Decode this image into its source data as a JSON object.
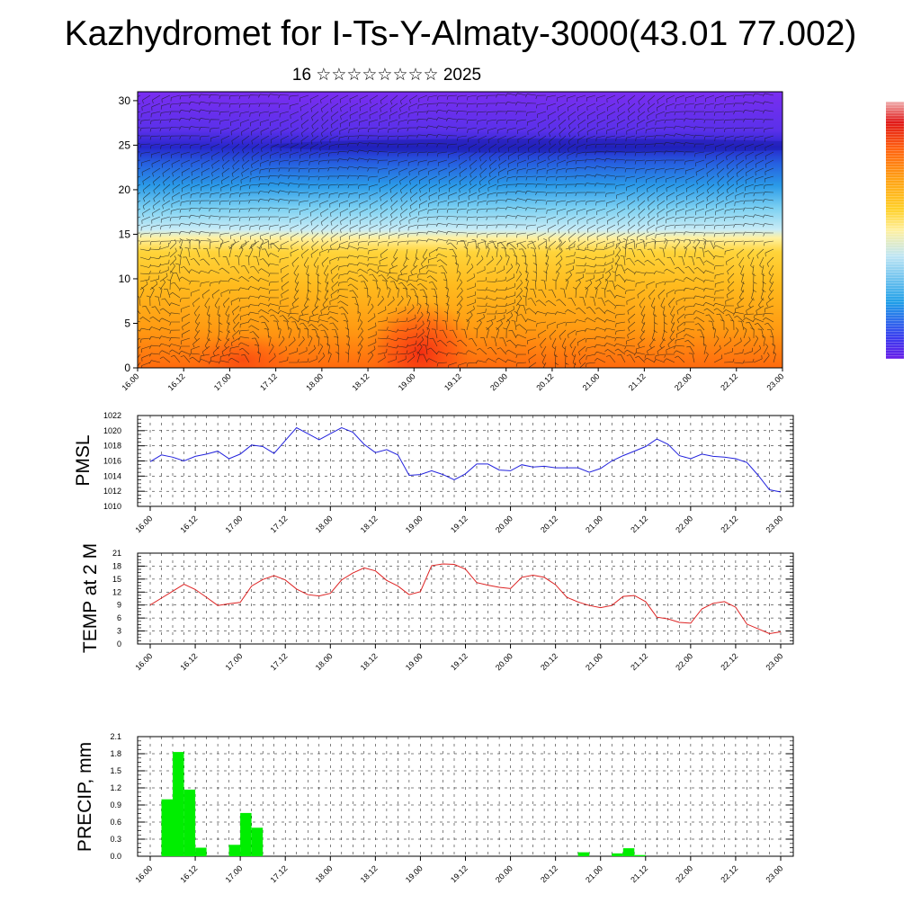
{
  "header": {
    "title": "Kazhydromet for I-Ts-Y-Almaty-3000(43.01 77.002)",
    "date": "16 ☆☆☆☆☆☆☆☆ 2025"
  },
  "colors": {
    "pmsl_line": "#2222dd",
    "temp_line": "#dd2222",
    "precip_bar": "#00ee00",
    "colorbar_stops": [
      "#6a1ee8",
      "#3a3aee",
      "#1f9fe8",
      "#bfe6f4",
      "#fff0a0",
      "#ffd12a",
      "#ffa114",
      "#ff6010",
      "#e01818",
      "#f0b0b0"
    ]
  },
  "chart_data": [
    {
      "type": "heatmap",
      "title": "",
      "x_tick_labels": [
        "16.00",
        "16.12",
        "17.00",
        "17.12",
        "18.00",
        "18.12",
        "19.00",
        "19.12",
        "20.00",
        "20.12",
        "21.00",
        "21.12",
        "22.00",
        "22.12",
        "23.00"
      ],
      "y_ticks": [
        0,
        5,
        10,
        15,
        20,
        25,
        30
      ],
      "ylim": [
        0,
        31
      ],
      "overlay": "wind barbs",
      "colorbar": "right, unlabeled"
    },
    {
      "type": "line",
      "ylabel": "PMSL",
      "y_ticks": [
        1010,
        1012,
        1014,
        1016,
        1018,
        1020,
        1022
      ],
      "ylim": [
        1010,
        1022
      ],
      "x_tick_labels": [
        "16.00",
        "16.12",
        "17.00",
        "17.12",
        "18.00",
        "18.12",
        "19.00",
        "19.12",
        "20.00",
        "20.12",
        "21.00",
        "21.12",
        "22.00",
        "22.12",
        "23.00"
      ],
      "series": [
        {
          "values": [
            1015.9,
            1016.8,
            1016.5,
            1016.0,
            1016.6,
            1016.9,
            1017.3,
            1016.3,
            1016.9,
            1018.1,
            1017.9,
            1017.0,
            1018.7,
            1020.4,
            1019.6,
            1018.8,
            1019.6,
            1020.4,
            1019.8,
            1018.2,
            1017.1,
            1017.5,
            1016.8,
            1014.1,
            1014.2,
            1014.7,
            1014.2,
            1013.5,
            1014.3,
            1015.6,
            1015.6,
            1014.8,
            1014.7,
            1015.5,
            1015.2,
            1015.3,
            1015.1,
            1015.1,
            1015.1,
            1014.5,
            1015.0,
            1016.0,
            1016.7,
            1017.3,
            1017.9,
            1018.9,
            1018.2,
            1016.7,
            1016.3,
            1016.9,
            1016.6,
            1016.5,
            1016.3,
            1015.8,
            1014.1,
            1012.2,
            1011.9
          ]
        }
      ]
    },
    {
      "type": "line",
      "ylabel": "TEMP at 2 M",
      "y_ticks": [
        0,
        3,
        6,
        9,
        12,
        15,
        18,
        21
      ],
      "ylim": [
        0,
        21
      ],
      "x_tick_labels": [
        "16.00",
        "16.12",
        "17.00",
        "17.12",
        "18.00",
        "18.12",
        "19.00",
        "19.12",
        "20.00",
        "20.12",
        "21.00",
        "21.12",
        "22.00",
        "22.12",
        "23.00"
      ],
      "series": [
        {
          "values": [
            9.0,
            10.6,
            12.2,
            13.8,
            12.6,
            10.8,
            8.9,
            9.3,
            9.6,
            13.4,
            14.9,
            15.8,
            14.8,
            12.7,
            11.4,
            11.1,
            11.7,
            14.8,
            16.4,
            17.6,
            16.9,
            14.7,
            13.4,
            11.4,
            12.1,
            18.1,
            18.5,
            18.4,
            17.3,
            14.2,
            13.6,
            13.1,
            12.8,
            15.4,
            15.9,
            15.4,
            13.7,
            10.8,
            9.7,
            8.9,
            8.4,
            8.9,
            11.0,
            11.2,
            9.8,
            6.2,
            5.8,
            5.0,
            4.8,
            8.1,
            9.4,
            9.8,
            8.5,
            4.6,
            3.5,
            2.4,
            2.8
          ]
        }
      ]
    },
    {
      "type": "bar",
      "ylabel": "PRECIP, mm",
      "y_ticks": [
        0.0,
        0.3,
        0.6,
        0.9,
        1.2,
        1.5,
        1.8,
        2.1
      ],
      "ylim": [
        0,
        2.1
      ],
      "x_tick_labels": [
        "16.00",
        "16.12",
        "17.00",
        "17.12",
        "18.00",
        "18.12",
        "19.00",
        "19.12",
        "20.00",
        "20.12",
        "21.00",
        "21.12",
        "22.00",
        "22.12",
        "23.00"
      ],
      "series": [
        {
          "values": [
            0,
            1.0,
            1.83,
            1.17,
            0.15,
            0,
            0,
            0.2,
            0.76,
            0.5,
            0,
            0,
            0,
            0,
            0,
            0,
            0,
            0,
            0,
            0,
            0,
            0,
            0,
            0,
            0,
            0,
            0,
            0,
            0,
            0,
            0,
            0,
            0,
            0,
            0,
            0,
            0,
            0,
            0.07,
            0,
            0,
            0.05,
            0.14,
            0.02,
            0,
            0,
            0,
            0,
            0,
            0,
            0,
            0,
            0,
            0,
            0,
            0,
            0
          ]
        }
      ]
    }
  ]
}
